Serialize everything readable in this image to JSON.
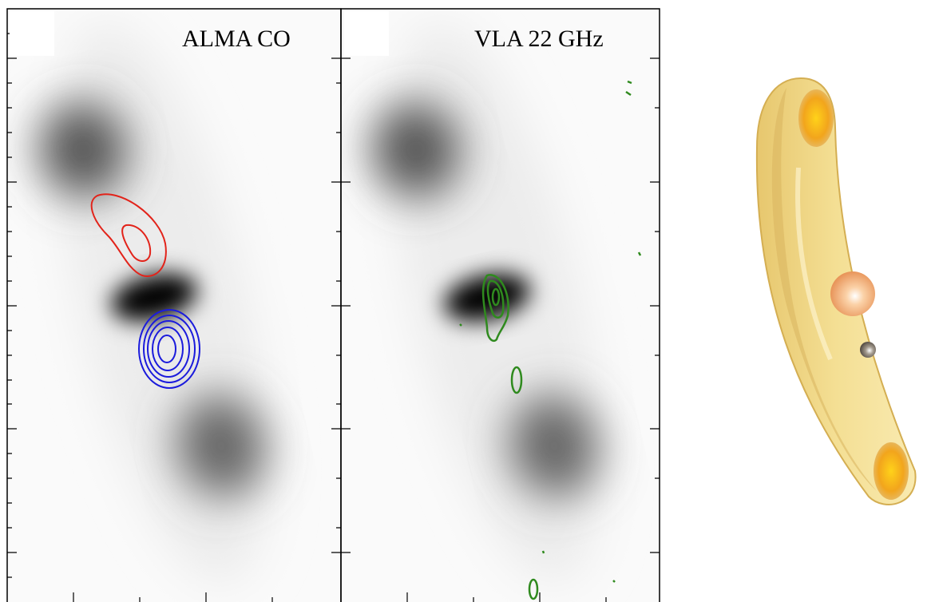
{
  "panels": [
    {
      "label": "ALMA CO"
    },
    {
      "label": "VLA 22 GHz"
    }
  ]
}
